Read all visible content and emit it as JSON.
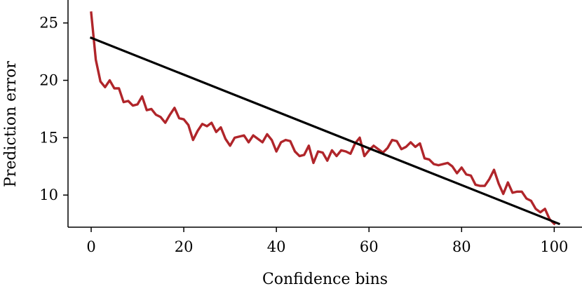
{
  "chart_data": {
    "type": "line",
    "xlabel": "Confidence bins",
    "ylabel": "Prediction error",
    "xlim": [
      -5,
      106
    ],
    "ylim": [
      7.2,
      27
    ],
    "x_ticks": [
      0,
      20,
      40,
      60,
      80,
      100
    ],
    "y_ticks": [
      10,
      15,
      20,
      25
    ],
    "grid": false,
    "spines": [
      "left",
      "bottom"
    ],
    "colors": {
      "error_curve": "#b0252a",
      "trend_line": "#000000"
    },
    "series": [
      {
        "id": "error_curve",
        "values": [
          [
            0,
            25.9
          ],
          [
            1,
            21.8
          ],
          [
            2,
            19.9
          ],
          [
            3,
            19.4
          ],
          [
            4,
            20.0
          ],
          [
            5,
            19.3
          ],
          [
            6,
            19.3
          ],
          [
            7,
            18.1
          ],
          [
            8,
            18.2
          ],
          [
            9,
            17.8
          ],
          [
            10,
            17.9
          ],
          [
            11,
            18.6
          ],
          [
            12,
            17.4
          ],
          [
            13,
            17.5
          ],
          [
            14,
            17.0
          ],
          [
            15,
            16.8
          ],
          [
            16,
            16.3
          ],
          [
            17,
            17.0
          ],
          [
            18,
            17.6
          ],
          [
            19,
            16.7
          ],
          [
            20,
            16.6
          ],
          [
            21,
            16.1
          ],
          [
            22,
            14.8
          ],
          [
            23,
            15.6
          ],
          [
            24,
            16.2
          ],
          [
            25,
            16.0
          ],
          [
            26,
            16.3
          ],
          [
            27,
            15.5
          ],
          [
            28,
            15.9
          ],
          [
            29,
            14.9
          ],
          [
            30,
            14.3
          ],
          [
            31,
            15.0
          ],
          [
            32,
            15.1
          ],
          [
            33,
            15.2
          ],
          [
            34,
            14.6
          ],
          [
            35,
            15.2
          ],
          [
            36,
            14.9
          ],
          [
            37,
            14.6
          ],
          [
            38,
            15.3
          ],
          [
            39,
            14.8
          ],
          [
            40,
            13.8
          ],
          [
            41,
            14.6
          ],
          [
            42,
            14.8
          ],
          [
            43,
            14.7
          ],
          [
            44,
            13.8
          ],
          [
            45,
            13.4
          ],
          [
            46,
            13.5
          ],
          [
            47,
            14.3
          ],
          [
            48,
            12.8
          ],
          [
            49,
            13.8
          ],
          [
            50,
            13.7
          ],
          [
            51,
            13.0
          ],
          [
            52,
            13.9
          ],
          [
            53,
            13.4
          ],
          [
            54,
            13.9
          ],
          [
            55,
            13.8
          ],
          [
            56,
            13.6
          ],
          [
            57,
            14.5
          ],
          [
            58,
            15.0
          ],
          [
            59,
            13.4
          ],
          [
            60,
            13.9
          ],
          [
            61,
            14.3
          ],
          [
            62,
            14.0
          ],
          [
            63,
            13.7
          ],
          [
            64,
            14.1
          ],
          [
            65,
            14.8
          ],
          [
            66,
            14.7
          ],
          [
            67,
            14.0
          ],
          [
            68,
            14.2
          ],
          [
            69,
            14.6
          ],
          [
            70,
            14.2
          ],
          [
            71,
            14.5
          ],
          [
            72,
            13.2
          ],
          [
            73,
            13.1
          ],
          [
            74,
            12.7
          ],
          [
            75,
            12.6
          ],
          [
            76,
            12.7
          ],
          [
            77,
            12.8
          ],
          [
            78,
            12.5
          ],
          [
            79,
            11.9
          ],
          [
            80,
            12.4
          ],
          [
            81,
            11.8
          ],
          [
            82,
            11.7
          ],
          [
            83,
            10.9
          ],
          [
            84,
            10.8
          ],
          [
            85,
            10.8
          ],
          [
            86,
            11.4
          ],
          [
            87,
            12.2
          ],
          [
            88,
            11.0
          ],
          [
            89,
            10.1
          ],
          [
            90,
            11.1
          ],
          [
            91,
            10.2
          ],
          [
            92,
            10.3
          ],
          [
            93,
            10.3
          ],
          [
            94,
            9.7
          ],
          [
            95,
            9.5
          ],
          [
            96,
            8.8
          ],
          [
            97,
            8.5
          ],
          [
            98,
            8.8
          ],
          [
            99,
            7.9
          ],
          [
            100,
            7.5
          ]
        ]
      },
      {
        "id": "trend_line",
        "values": [
          [
            0,
            23.7
          ],
          [
            101,
            7.5
          ]
        ]
      }
    ]
  }
}
